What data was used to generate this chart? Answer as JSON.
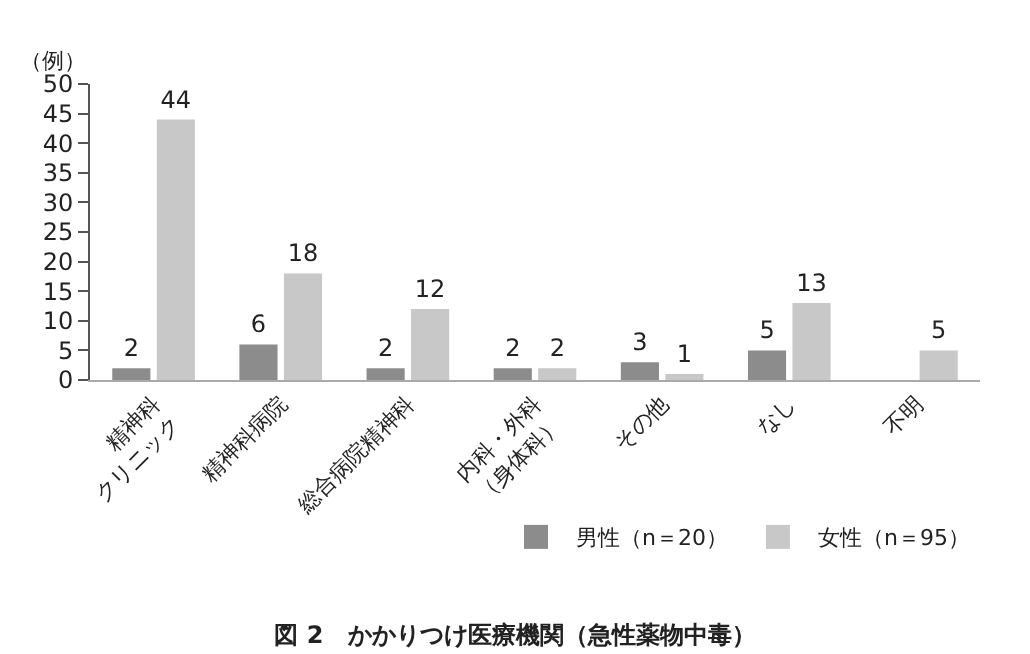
{
  "chart_data": {
    "type": "bar",
    "title": "図 2　かかりつけ医療機関（急性薬物中毒）",
    "ylabel": "（例）",
    "categories": [
      "精神科\nクリニック",
      "精神科病院",
      "総合病院精神科",
      "内科・外科\n（身体科）",
      "その他",
      "なし",
      "不明"
    ],
    "series": [
      {
        "name": "男性（n＝20）",
        "color": "#8c8c8c",
        "values": [
          2,
          6,
          2,
          2,
          3,
          5,
          null
        ]
      },
      {
        "name": "女性（n＝95）",
        "color": "#c8c8c8",
        "values": [
          44,
          18,
          12,
          2,
          1,
          13,
          5
        ]
      }
    ],
    "ylim": [
      0,
      50
    ],
    "yticks": [
      0,
      5,
      10,
      15,
      20,
      25,
      30,
      35,
      40,
      45,
      50
    ],
    "legend": "bottom right",
    "data_labels": true
  }
}
